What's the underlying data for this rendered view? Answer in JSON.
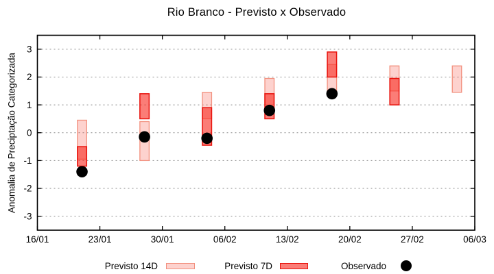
{
  "chart_data": {
    "type": "range-bar",
    "title": "Rio Branco - Previsto x Observado",
    "ylabel": "Anomalia de Preciptação Categorizada",
    "xlabel": "",
    "x_tick_labels": [
      "16/01",
      "23/01",
      "30/01",
      "06/02",
      "13/02",
      "20/02",
      "27/02",
      "06/03"
    ],
    "x_tick_days": [
      0,
      7,
      14,
      21,
      28,
      35,
      42,
      49
    ],
    "x_span_days": 49,
    "y_ticks": [
      3,
      2,
      1,
      0,
      -1,
      -2,
      -3
    ],
    "ylim": [
      -3.5,
      3.5
    ],
    "grid": "horizontal-dashed-gray",
    "legend_position": "below-plot",
    "series_names": [
      "Previsto 14D",
      "Previsto 7D",
      "Observado"
    ],
    "clusters": [
      {
        "date": "21/01",
        "day": 5,
        "previsto_14d": [
          -0.95,
          0.45
        ],
        "previsto_7d": [
          -1.2,
          -0.5
        ],
        "observado": -1.4
      },
      {
        "date": "28/01",
        "day": 12,
        "previsto_14d": [
          -1.0,
          0.4
        ],
        "previsto_7d": [
          0.5,
          1.4
        ],
        "observado": -0.15
      },
      {
        "date": "04/02",
        "day": 19,
        "previsto_14d": [
          0.5,
          1.45
        ],
        "previsto_7d": [
          -0.45,
          0.9
        ],
        "observado": -0.2
      },
      {
        "date": "11/02",
        "day": 26,
        "previsto_14d": [
          1.0,
          1.95
        ],
        "previsto_7d": [
          0.5,
          1.4
        ],
        "observado": 0.8
      },
      {
        "date": "18/02",
        "day": 33,
        "previsto_14d": [
          1.45,
          2.45
        ],
        "previsto_7d": [
          2.0,
          2.9
        ],
        "observado": 1.4
      },
      {
        "date": "25/02",
        "day": 40,
        "previsto_14d": [
          1.5,
          2.4
        ],
        "previsto_7d": [
          1.0,
          1.95
        ],
        "observado": null
      },
      {
        "date": "04/03",
        "day": 47,
        "previsto_14d": [
          1.45,
          2.4
        ],
        "previsto_7d": null,
        "observado": null
      }
    ]
  },
  "legend": {
    "previsto_14d": "Previsto 14D",
    "previsto_7d": "Previsto 7D",
    "observado": "Observado"
  },
  "colors": {
    "background": "#ffffff",
    "frame": "#000000",
    "grid": "#8a8a8a",
    "previsto_14d_fill": "rgba(248,75,60,0.25)",
    "previsto_14d_border": "#f2907e",
    "previsto_7d_fill": "rgba(248,45,35,0.62)",
    "previsto_7d_border": "#e8120c",
    "observado": "#000000"
  }
}
